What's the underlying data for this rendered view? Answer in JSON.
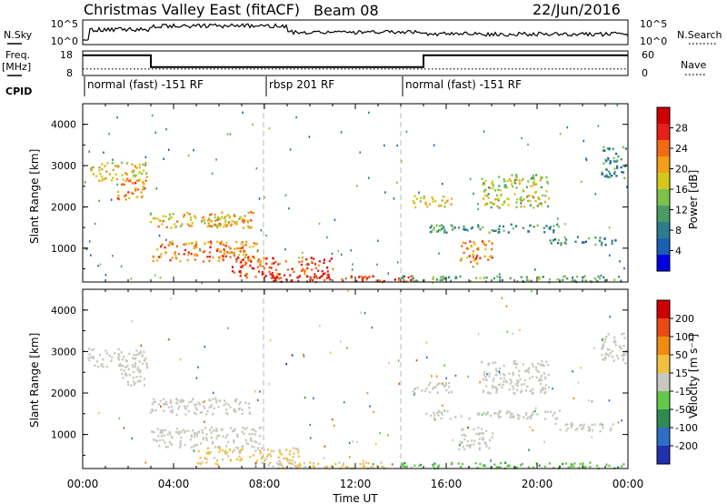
{
  "header": {
    "title": "Christmas Valley East (fitACF)",
    "beam": "Beam 08",
    "date": "22/Jun/2016"
  },
  "panels": {
    "nsky_label": "N.Sky",
    "nsearch_label": "N.Search",
    "freq_label": "Freq.",
    "freq_unit": "[MHz]",
    "nave_label": "Nave",
    "cpid_label": "CPID"
  },
  "xlabel": "Time UT",
  "x_ticks": [
    "00:00",
    "04:00",
    "08:00",
    "12:00",
    "16:00",
    "20:00",
    "00:00"
  ],
  "cpid_segments": [
    {
      "label": "normal (fast) -151 RF",
      "start_h": 0,
      "end_h": 8
    },
    {
      "label": "rbsp 201 RF",
      "start_h": 8,
      "end_h": 14
    },
    {
      "label": "normal (fast) -151 RF",
      "start_h": 14,
      "end_h": 24
    }
  ],
  "freq_panel": {
    "left_ticks": [
      "18",
      "8"
    ],
    "right_ticks": [
      "60",
      "0"
    ],
    "freq_segments": [
      {
        "start_h": 0,
        "end_h": 3,
        "mhz": 16.5
      },
      {
        "start_h": 3,
        "end_h": 15,
        "mhz": 11.3
      },
      {
        "start_h": 15,
        "end_h": 24,
        "mhz": 16.5
      }
    ],
    "nave_level": 15
  },
  "nsky_panel": {
    "left_ticks": [
      "10^5",
      "10^0"
    ],
    "right_ticks": [
      "10^5",
      "10^0"
    ]
  },
  "colorbars": [
    {
      "label": "Power [dB]",
      "ticks": [
        "28",
        "24",
        "20",
        "16",
        "12",
        "8",
        "4"
      ],
      "colors": [
        "#0000e0",
        "#1a5fb4",
        "#2e7d8c",
        "#4c9b64",
        "#7cc24a",
        "#d4c81e",
        "#f2a01a",
        "#f26a12",
        "#e8201a",
        "#d00000"
      ]
    },
    {
      "label": "Velocity [m s⁻¹]",
      "ticks": [
        "200",
        "100",
        "50",
        "15",
        "-15",
        "-50",
        "-100",
        "-200"
      ],
      "colors": [
        "#2030b0",
        "#2e6ec8",
        "#2e8c50",
        "#63c84a",
        "#c8c8c0",
        "#f0c040",
        "#f08a10",
        "#e84a10",
        "#d00000"
      ]
    }
  ],
  "chart_data": [
    {
      "type": "heatmap",
      "title": "Christmas Valley East (fitACF) Beam 08 22/Jun/2016",
      "xlabel": "Time UT",
      "ylabel": "Slant Range [km]",
      "xlim_hours": [
        0,
        24
      ],
      "ylim_km": [
        180,
        4500
      ],
      "y_ticks": [
        "4000",
        "3000",
        "2000",
        "1000"
      ],
      "colorbar_label": "Power [dB]",
      "colorbar_range": [
        0,
        32
      ],
      "blobs": [
        {
          "t0": 0.2,
          "t1": 2.8,
          "r0": 2650,
          "r1": 3100,
          "v": 18
        },
        {
          "t0": 1.5,
          "t1": 2.8,
          "r0": 2200,
          "r1": 2700,
          "v": 22
        },
        {
          "t0": 2.9,
          "t1": 7.5,
          "r0": 1500,
          "r1": 1900,
          "v": 20
        },
        {
          "t0": 3.0,
          "t1": 7.8,
          "r0": 700,
          "r1": 1200,
          "v": 22
        },
        {
          "t0": 5.5,
          "t1": 6.6,
          "r0": 1500,
          "r1": 1800,
          "v": 18
        },
        {
          "t0": 6.5,
          "t1": 11.0,
          "r0": 300,
          "r1": 800,
          "v": 26
        },
        {
          "t0": 8.0,
          "t1": 14.5,
          "r0": 200,
          "r1": 350,
          "v": 27
        },
        {
          "t0": 14.0,
          "t1": 23.8,
          "r0": 200,
          "r1": 350,
          "v": 12
        },
        {
          "t0": 14.5,
          "t1": 16.2,
          "r0": 2000,
          "r1": 2300,
          "v": 18
        },
        {
          "t0": 15.0,
          "t1": 21.0,
          "r0": 1400,
          "r1": 1600,
          "v": 10
        },
        {
          "t0": 16.5,
          "t1": 18.0,
          "r0": 650,
          "r1": 1200,
          "v": 22
        },
        {
          "t0": 17.5,
          "t1": 20.5,
          "r0": 2000,
          "r1": 2800,
          "v": 16
        },
        {
          "t0": 20.5,
          "t1": 23.5,
          "r0": 1100,
          "r1": 1300,
          "v": 10
        },
        {
          "t0": 22.8,
          "t1": 23.9,
          "r0": 2700,
          "r1": 3500,
          "v": 10
        }
      ]
    },
    {
      "type": "heatmap",
      "xlabel": "Time UT",
      "ylabel": "Slant Range [km]",
      "xlim_hours": [
        0,
        24
      ],
      "ylim_km": [
        180,
        4500
      ],
      "y_ticks": [
        "4000",
        "3000",
        "2000",
        "1000"
      ],
      "colorbar_label": "Velocity [m s⁻¹]",
      "colorbar_range": [
        -250,
        250
      ],
      "blobs": [
        {
          "t0": 0.2,
          "t1": 2.8,
          "r0": 2650,
          "r1": 3100,
          "v": 0
        },
        {
          "t0": 1.5,
          "t1": 2.8,
          "r0": 2200,
          "r1": 2700,
          "v": 0
        },
        {
          "t0": 2.9,
          "t1": 7.5,
          "r0": 1500,
          "r1": 1900,
          "v": 0
        },
        {
          "t0": 3.0,
          "t1": 7.8,
          "r0": 700,
          "r1": 1200,
          "v": 0
        },
        {
          "t0": 5.0,
          "t1": 9.5,
          "r0": 300,
          "r1": 700,
          "v": 40
        },
        {
          "t0": 8.0,
          "t1": 14.5,
          "r0": 200,
          "r1": 350,
          "v": 30
        },
        {
          "t0": 14.0,
          "t1": 23.8,
          "r0": 200,
          "r1": 350,
          "v": -60
        },
        {
          "t0": 14.5,
          "t1": 16.2,
          "r0": 2000,
          "r1": 2300,
          "v": 0
        },
        {
          "t0": 15.0,
          "t1": 21.0,
          "r0": 1400,
          "r1": 1600,
          "v": 0
        },
        {
          "t0": 16.5,
          "t1": 18.0,
          "r0": 650,
          "r1": 1200,
          "v": 0
        },
        {
          "t0": 17.5,
          "t1": 20.5,
          "r0": 2000,
          "r1": 2800,
          "v": 0
        },
        {
          "t0": 20.5,
          "t1": 23.5,
          "r0": 1100,
          "r1": 1300,
          "v": 0
        },
        {
          "t0": 22.8,
          "t1": 23.9,
          "r0": 2700,
          "r1": 3500,
          "v": 0
        }
      ]
    }
  ]
}
